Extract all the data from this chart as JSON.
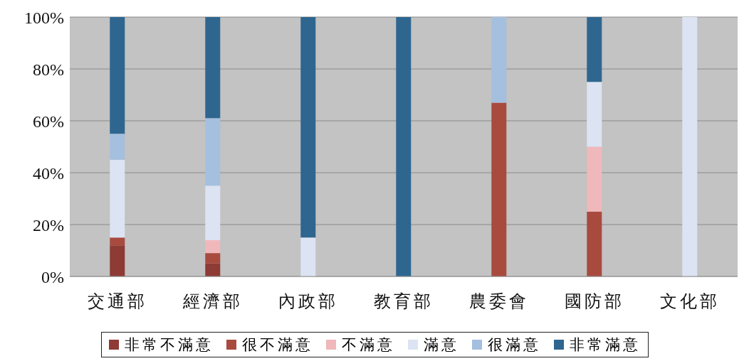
{
  "chart_data": {
    "type": "bar",
    "stacked": true,
    "categories": [
      "交通部",
      "經濟部",
      "內政部",
      "教育部",
      "農委會",
      "國防部",
      "文化部"
    ],
    "series": [
      {
        "name": "非常不滿意",
        "color": "#8e3b35",
        "values": [
          12,
          5,
          0,
          0,
          0,
          0,
          0
        ]
      },
      {
        "name": "很不滿意",
        "color": "#a94a3f",
        "values": [
          3,
          4,
          0,
          0,
          67,
          25,
          0
        ]
      },
      {
        "name": "不滿意",
        "color": "#f0b8bb",
        "values": [
          0,
          5,
          0,
          0,
          0,
          25,
          0
        ]
      },
      {
        "name": "滿意",
        "color": "#dce4f3",
        "values": [
          30,
          21,
          15,
          0,
          0,
          25,
          100
        ]
      },
      {
        "name": "很滿意",
        "color": "#a5bfdf",
        "values": [
          10,
          26,
          0,
          0,
          33,
          0,
          0
        ]
      },
      {
        "name": "非常滿意",
        "color": "#2f6690",
        "values": [
          45,
          39,
          85,
          100,
          0,
          25,
          0
        ]
      }
    ],
    "ylim": [
      0,
      100
    ],
    "yticks": [
      {
        "value": 0,
        "label": "0%"
      },
      {
        "value": 20,
        "label": "20%"
      },
      {
        "value": 40,
        "label": "40%"
      },
      {
        "value": 60,
        "label": "60%"
      },
      {
        "value": 80,
        "label": "80%"
      },
      {
        "value": 100,
        "label": "100%"
      }
    ],
    "grid": "y",
    "legend": "bottom"
  }
}
